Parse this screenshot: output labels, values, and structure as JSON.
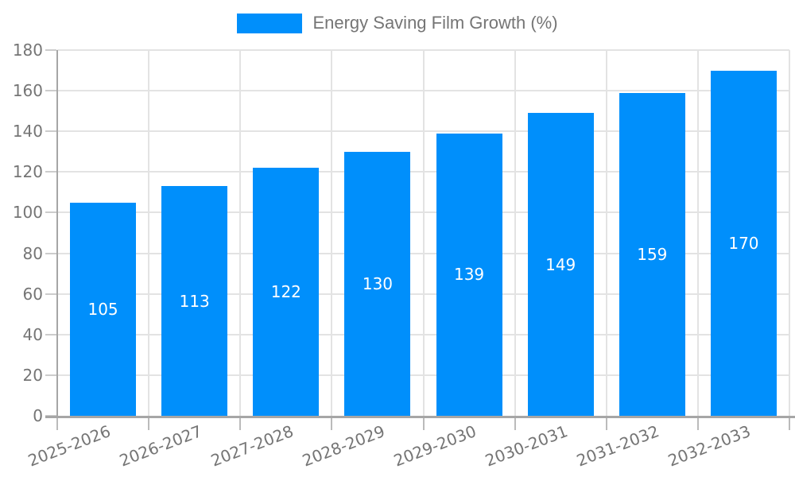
{
  "legend": {
    "label": "Energy Saving Film Growth (%)"
  },
  "chart_data": {
    "type": "bar",
    "title": "",
    "xlabel": "",
    "ylabel": "",
    "legend_position": "top",
    "categories": [
      "2025-2026",
      "2026-2027",
      "2027-2028",
      "2028-2029",
      "2029-2030",
      "2030-2031",
      "2031-2032",
      "2032-2033"
    ],
    "series": [
      {
        "name": "Energy Saving Film Growth (%)",
        "values": [
          105,
          113,
          122,
          130,
          139,
          149,
          159,
          170
        ],
        "color": "#008FFB"
      }
    ],
    "value_labels": [
      "105",
      "113",
      "122",
      "130",
      "139",
      "149",
      "159",
      "170"
    ],
    "value_label_position": "inside-center",
    "value_label_color": "#ffffff",
    "ylim": [
      0,
      180
    ],
    "yticks": [
      0,
      20,
      40,
      60,
      80,
      100,
      120,
      140,
      160,
      180
    ],
    "x_tick_rotation_deg": -21,
    "grid": {
      "horizontal": true,
      "vertical": true
    },
    "colors": {
      "bar": "#008FFB",
      "axis_text": "#757575",
      "legend_text": "#757575",
      "gridline": "#e3e3e3",
      "axis_line": "#a6a6a6",
      "background": "#ffffff"
    }
  }
}
